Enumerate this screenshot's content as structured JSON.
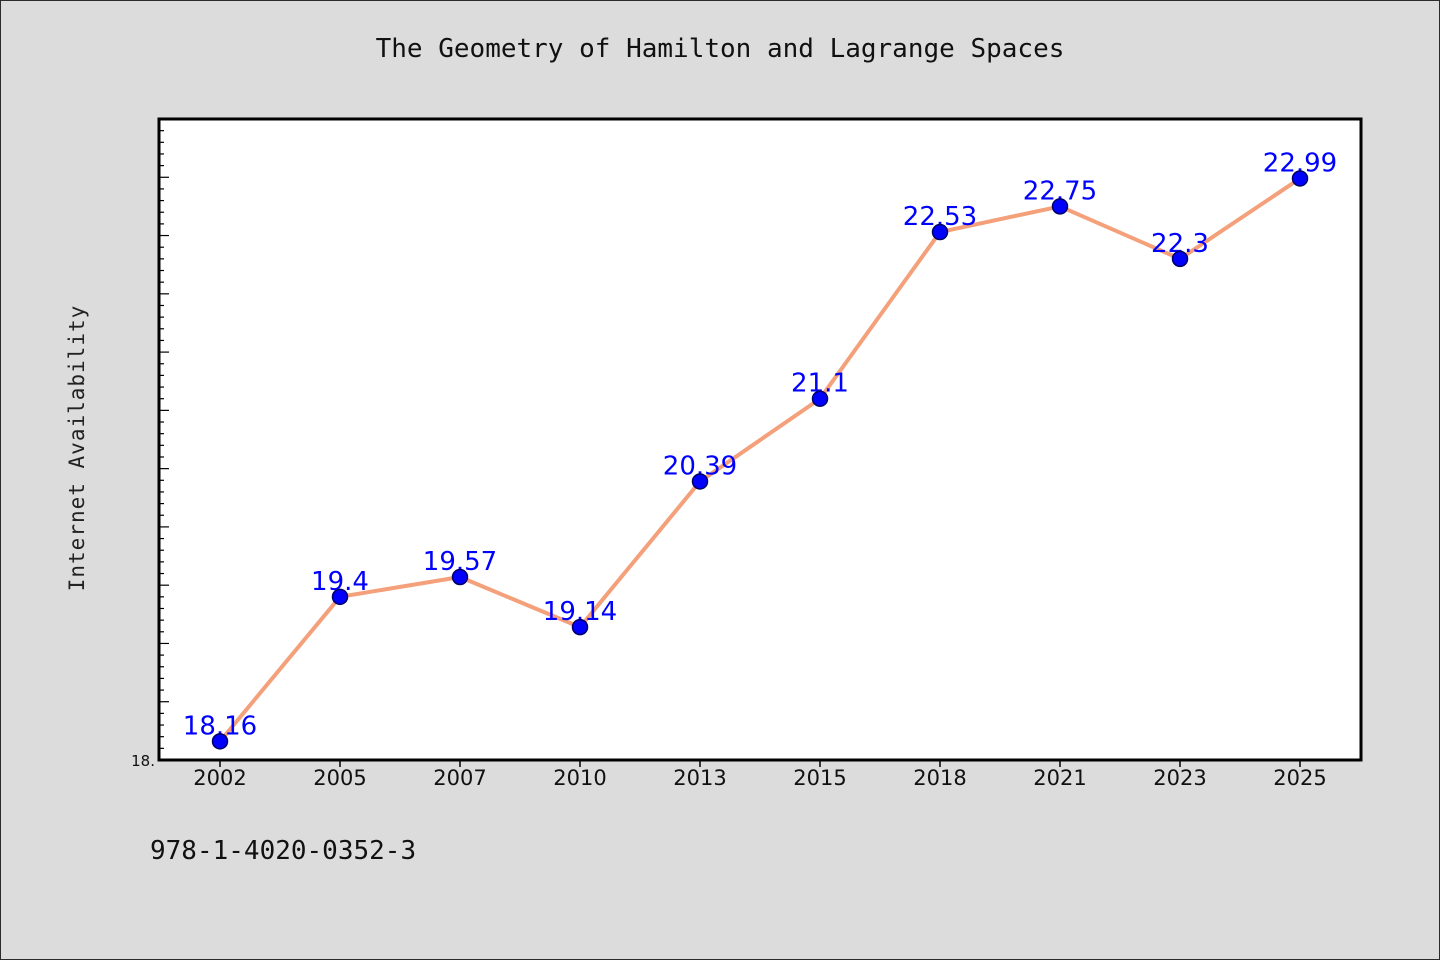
{
  "chart_data": {
    "type": "line",
    "title": "The Geometry of Hamilton and Lagrange Spaces",
    "xlabel": "",
    "ylabel": "Internet Availability",
    "x": [
      "2002",
      "2005",
      "2007",
      "2010",
      "2013",
      "2015",
      "2018",
      "2021",
      "2023",
      "2025"
    ],
    "series": [
      {
        "values": [
          18.16,
          19.4,
          19.57,
          19.14,
          20.39,
          21.1,
          22.53,
          22.75,
          22.3,
          22.99
        ]
      }
    ],
    "data_labels": [
      "18.16",
      "19.4",
      "19.57",
      "19.14",
      "20.39",
      "21.1",
      "22.53",
      "22.75",
      "22.3",
      "22.99"
    ],
    "y_tick_label": "18.",
    "ylim": [
      18.0,
      23.5
    ],
    "grid": false,
    "legend": "none",
    "colors": {
      "line": "#f4a07a",
      "marker": "#0000ff",
      "marker_edge": "#000066",
      "data_label": "#0000ff",
      "plot_background": "#ffffff",
      "figure_background": "#dcdcdc"
    }
  },
  "footer_text": "978-1-4020-0352-3"
}
